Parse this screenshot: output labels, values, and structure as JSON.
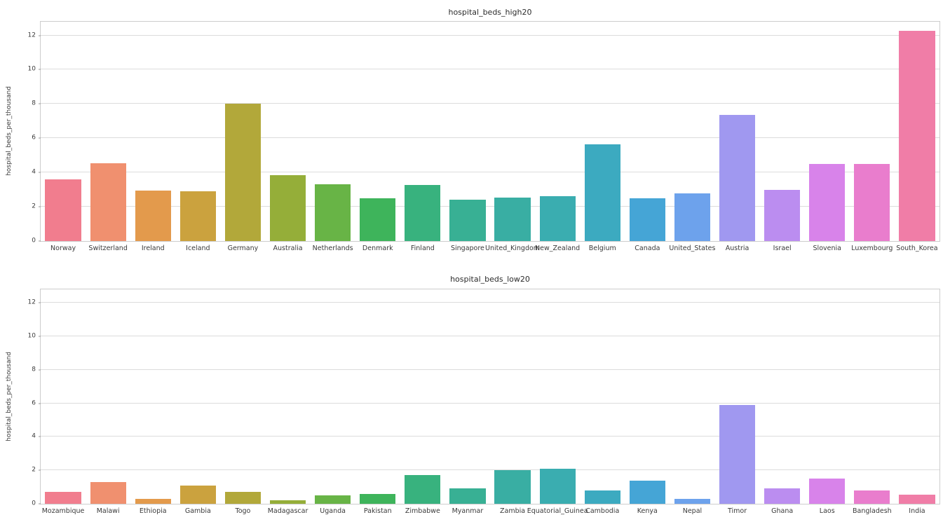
{
  "style": {
    "background": "#ffffff",
    "grid_color": "#dcdcdc",
    "spine_color": "#cccccc",
    "text_color": "#3a3a3a"
  },
  "chart_data": [
    {
      "type": "bar",
      "title": "hospital_beds_high20",
      "xlabel": "",
      "ylabel": "hospital_beds_per_thousand",
      "ylim": [
        0,
        12.8
      ],
      "yticks": [
        0,
        2,
        4,
        6,
        8,
        10,
        12
      ],
      "grid": true,
      "legend": "none",
      "categories": [
        "Norway",
        "Switzerland",
        "Ireland",
        "Iceland",
        "Germany",
        "Australia",
        "Netherlands",
        "Denmark",
        "Finland",
        "Singapore",
        "United_Kingdom",
        "New_Zealand",
        "Belgium",
        "Canada",
        "United_States",
        "Austria",
        "Israel",
        "Slovenia",
        "Luxembourg",
        "South_Korea"
      ],
      "values": [
        3.6,
        4.53,
        2.96,
        2.91,
        8.0,
        3.84,
        3.32,
        2.5,
        3.28,
        2.4,
        2.54,
        2.61,
        5.64,
        2.5,
        2.77,
        7.37,
        2.99,
        4.5,
        4.51,
        12.27
      ],
      "colors": [
        "#f17d8e",
        "#f0906f",
        "#e39a4c",
        "#cba23e",
        "#b2a83a",
        "#95ae39",
        "#68b446",
        "#3eb45b",
        "#38b27e",
        "#38b094",
        "#39aea3",
        "#3aadb0",
        "#3caac0",
        "#45a5d6",
        "#6da2ec",
        "#a098f0",
        "#bb8df0",
        "#d883ea",
        "#e97dcd",
        "#f07da7"
      ]
    },
    {
      "type": "bar",
      "title": "hospital_beds_low20",
      "xlabel": "",
      "ylabel": "hospital_beds_per_thousand",
      "ylim": [
        0,
        12.8
      ],
      "yticks": [
        0,
        2,
        4,
        6,
        8,
        10,
        12
      ],
      "grid": true,
      "legend": "none",
      "categories": [
        "Mozambique",
        "Malawi",
        "Ethiopia",
        "Gambia",
        "Togo",
        "Madagascar",
        "Uganda",
        "Pakistan",
        "Zimbabwe",
        "Myanmar",
        "Zambia",
        "Equatorial_Guinea",
        "Cambodia",
        "Kenya",
        "Nepal",
        "Timor",
        "Ghana",
        "Laos",
        "Bangladesh",
        "India"
      ],
      "values": [
        0.7,
        1.3,
        0.3,
        1.1,
        0.7,
        0.2,
        0.5,
        0.6,
        1.7,
        0.9,
        2.0,
        2.1,
        0.8,
        1.4,
        0.3,
        5.9,
        0.9,
        1.5,
        0.8,
        0.53
      ],
      "colors": [
        "#f17d8e",
        "#f0906f",
        "#e39a4c",
        "#cba23e",
        "#b2a83a",
        "#95ae39",
        "#68b446",
        "#3eb45b",
        "#38b27e",
        "#38b094",
        "#39aea3",
        "#3aadb0",
        "#3caac0",
        "#45a5d6",
        "#6da2ec",
        "#a098f0",
        "#bb8df0",
        "#d883ea",
        "#e97dcd",
        "#f07da7"
      ]
    }
  ]
}
